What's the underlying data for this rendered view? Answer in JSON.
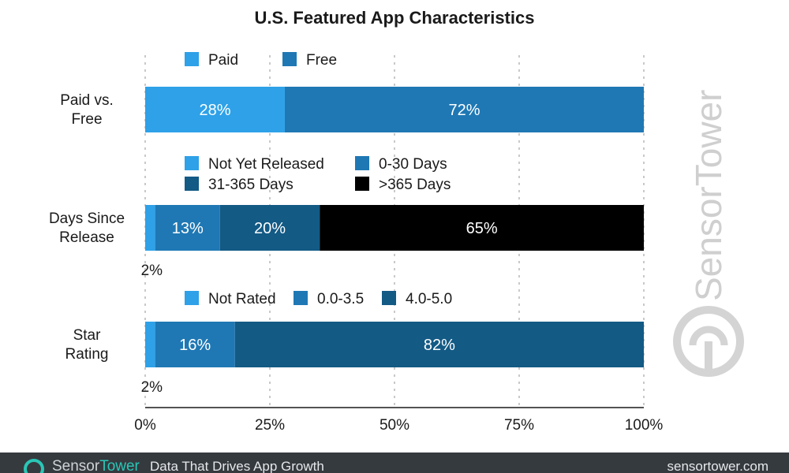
{
  "chart_data": {
    "type": "bar",
    "orientation": "horizontal",
    "stacked": true,
    "title": "U.S. Featured App Characteristics",
    "xlim": [
      0,
      100
    ],
    "x_ticks": [
      "0%",
      "25%",
      "50%",
      "75%",
      "100%"
    ],
    "x_tick_values": [
      0,
      25,
      50,
      75,
      100
    ],
    "grid": true,
    "groups": [
      {
        "category": [
          "Paid vs.",
          "Free"
        ],
        "legend": [
          {
            "name": "Paid",
            "color": "#2ea1e8"
          },
          {
            "name": "Free",
            "color": "#1f78b4"
          }
        ],
        "segments": [
          {
            "name": "Paid",
            "value": 28,
            "label": "28%",
            "color": "#2ea1e8"
          },
          {
            "name": "Free",
            "value": 72,
            "label": "72%",
            "color": "#1f78b4"
          }
        ]
      },
      {
        "category": [
          "Days Since",
          "Release"
        ],
        "legend": [
          {
            "name": "Not Yet Released",
            "color": "#2ea1e8"
          },
          {
            "name": "0-30 Days",
            "color": "#1f78b4"
          },
          {
            "name": "31-365 Days",
            "color": "#135a85"
          },
          {
            "name": ">365 Days",
            "color": "#000000"
          }
        ],
        "segments": [
          {
            "name": "Not Yet Released",
            "value": 2,
            "label": "2%",
            "color": "#2ea1e8"
          },
          {
            "name": "0-30 Days",
            "value": 13,
            "label": "13%",
            "color": "#1f78b4"
          },
          {
            "name": "31-365 Days",
            "value": 20,
            "label": "20%",
            "color": "#135a85"
          },
          {
            "name": ">365 Days",
            "value": 65,
            "label": "65%",
            "color": "#000000"
          }
        ]
      },
      {
        "category": [
          "Star",
          "Rating"
        ],
        "legend": [
          {
            "name": "Not Rated",
            "color": "#2ea1e8"
          },
          {
            "name": "0.0-3.5",
            "color": "#1f78b4"
          },
          {
            "name": "4.0-5.0",
            "color": "#135a85"
          }
        ],
        "segments": [
          {
            "name": "Not Rated",
            "value": 2,
            "label": "2%",
            "color": "#2ea1e8"
          },
          {
            "name": "0.0-3.5",
            "value": 16,
            "label": "16%",
            "color": "#1f78b4"
          },
          {
            "name": "4.0-5.0",
            "value": 82,
            "label": "82%",
            "color": "#135a85"
          }
        ]
      }
    ]
  },
  "watermark": {
    "brand_part1": "Sensor",
    "brand_part2": "Tower",
    "icon": "sensortower-logo-icon"
  },
  "footer": {
    "brand_part1": "Sensor",
    "brand_part2": "Tower",
    "tagline": "Data That Drives App Growth",
    "url": "sensortower.com",
    "icon": "sensortower-logo-icon",
    "background_color": "#353a3f",
    "accent_color": "#2ac6b6"
  }
}
